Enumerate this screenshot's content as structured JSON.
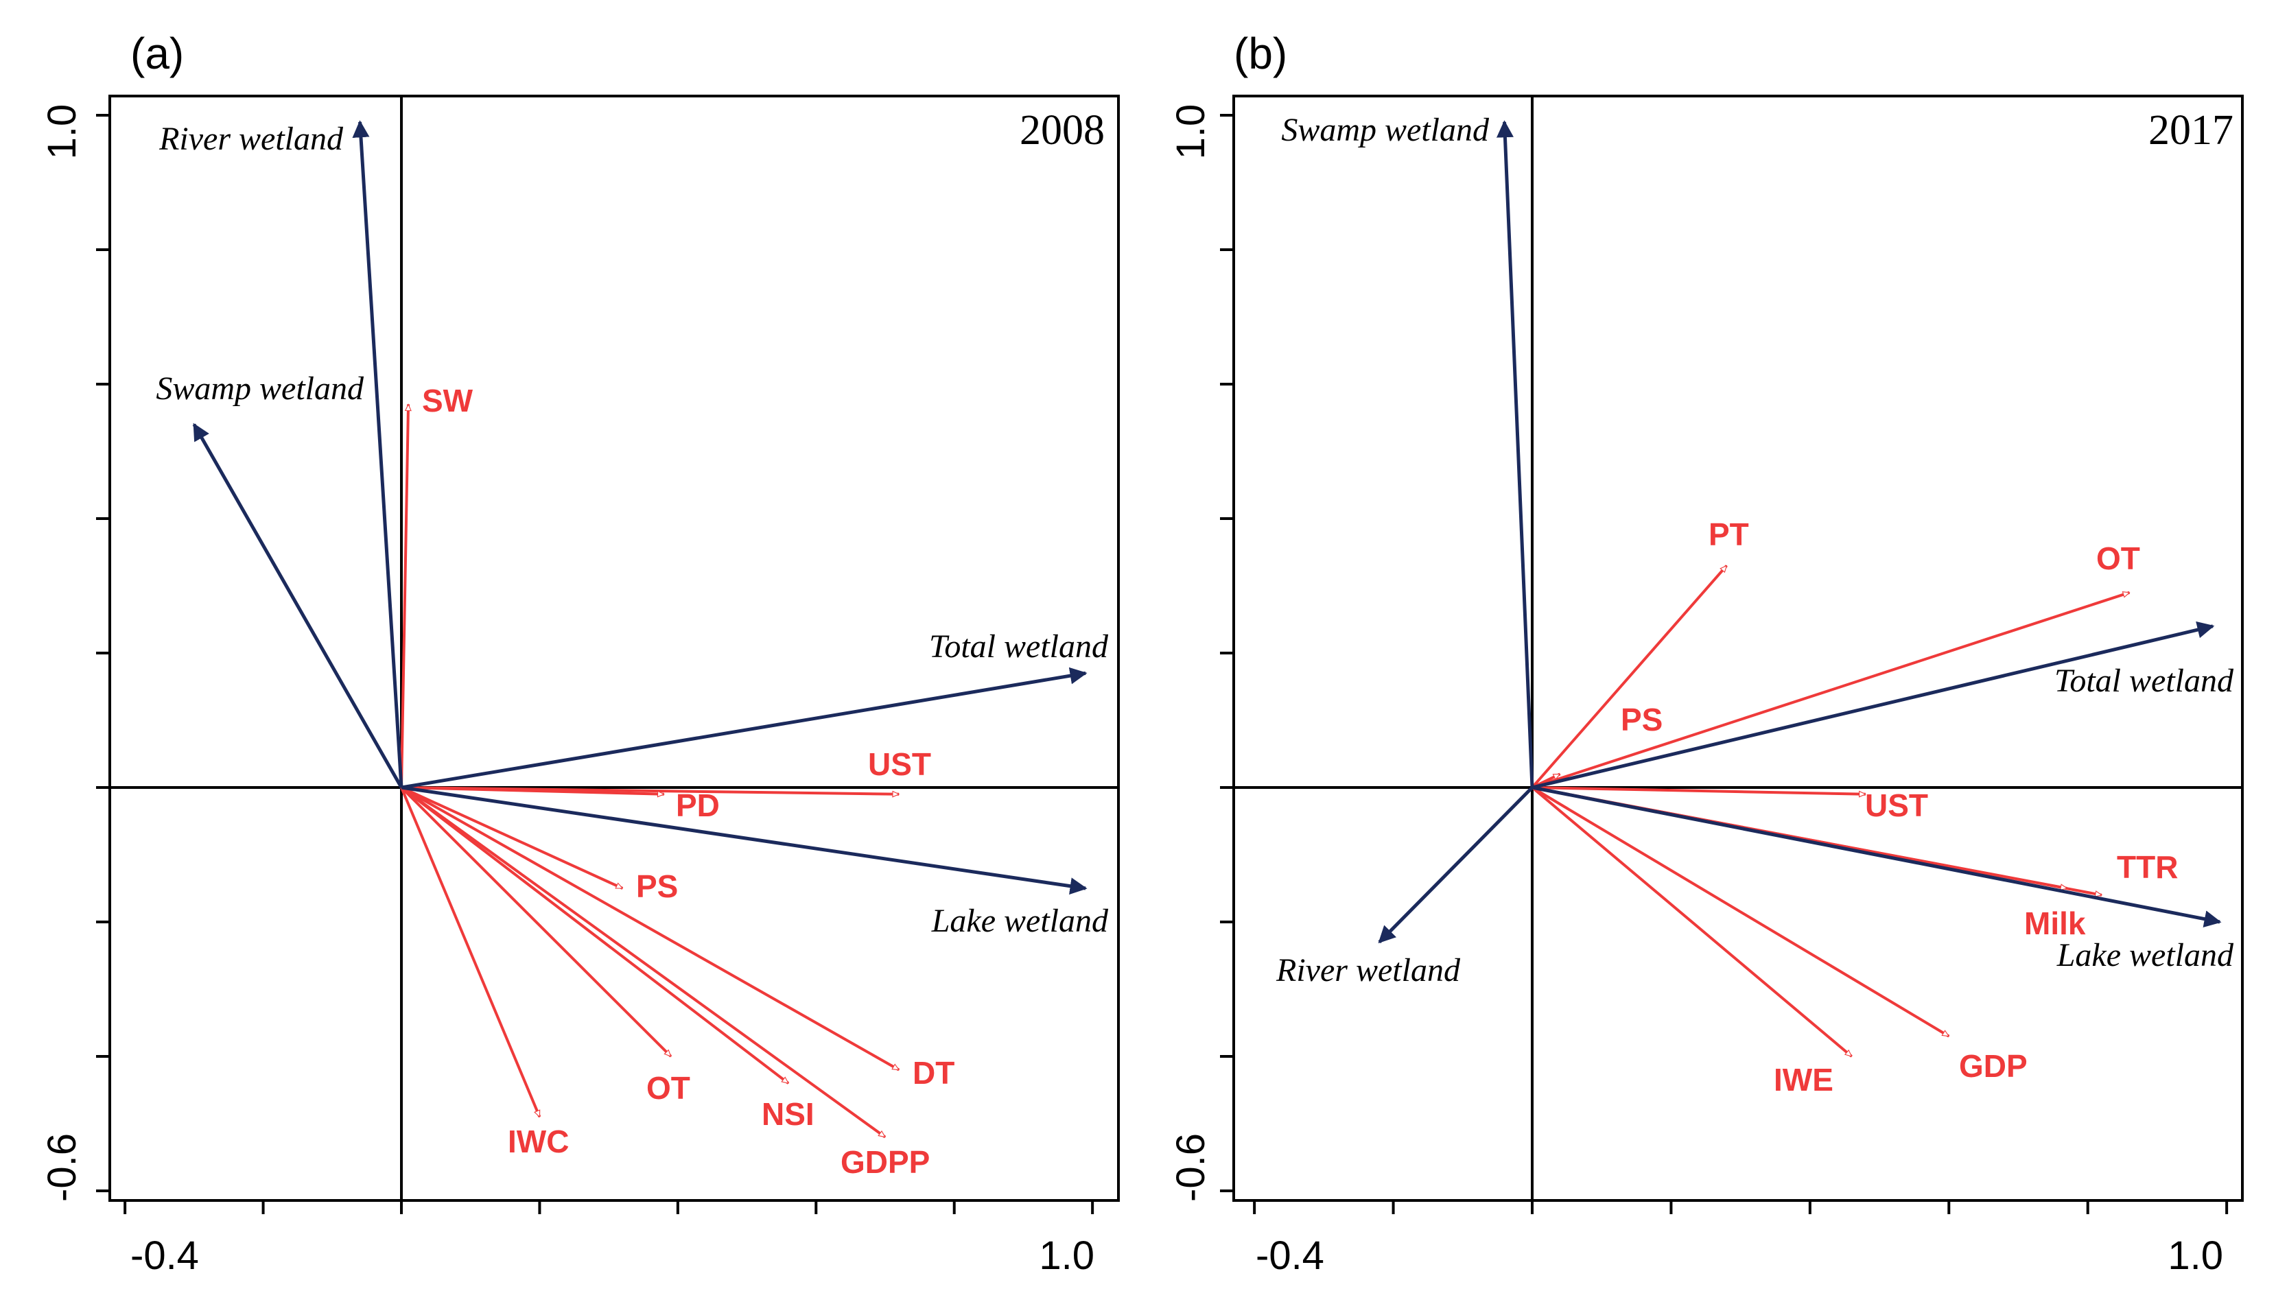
{
  "colors": {
    "response": "#1b2a5c",
    "explanatory": "#ef3a3a",
    "frame": "#000000"
  },
  "chart_data": [
    {
      "type": "biplot",
      "panel": "(a)",
      "year": "2008",
      "xlim": [
        -0.4,
        1.0
      ],
      "ylim": [
        -0.6,
        1.0
      ],
      "x_tick_labels": [
        "-0.4",
        "1.0"
      ],
      "y_tick_labels": [
        "-0.6",
        "1.0"
      ],
      "response_vectors": [
        {
          "name": "River wetland",
          "x": -0.06,
          "y": 0.99
        },
        {
          "name": "Swamp wetland",
          "x": -0.3,
          "y": 0.54
        },
        {
          "name": "Total wetland",
          "x": 0.99,
          "y": 0.17
        },
        {
          "name": "Lake wetland",
          "x": 0.99,
          "y": -0.15
        }
      ],
      "explanatory_vectors": [
        {
          "name": "SW",
          "x": 0.01,
          "y": 0.57
        },
        {
          "name": "UST",
          "x": 0.72,
          "y": -0.01
        },
        {
          "name": "PD",
          "x": 0.38,
          "y": -0.01
        },
        {
          "name": "PS",
          "x": 0.32,
          "y": -0.15
        },
        {
          "name": "DT",
          "x": 0.72,
          "y": -0.42
        },
        {
          "name": "GDPP",
          "x": 0.7,
          "y": -0.52
        },
        {
          "name": "NSI",
          "x": 0.56,
          "y": -0.44
        },
        {
          "name": "OT",
          "x": 0.39,
          "y": -0.4
        },
        {
          "name": "IWC",
          "x": 0.2,
          "y": -0.49
        }
      ]
    },
    {
      "type": "biplot",
      "panel": "(b)",
      "year": "2017",
      "xlim": [
        -0.4,
        1.0
      ],
      "ylim": [
        -0.6,
        1.0
      ],
      "x_tick_labels": [
        "-0.4",
        "1.0"
      ],
      "y_tick_labels": [
        "-0.6",
        "1.0"
      ],
      "response_vectors": [
        {
          "name": "Swamp wetland",
          "x": -0.04,
          "y": 0.99
        },
        {
          "name": "Total wetland",
          "x": 0.98,
          "y": 0.24
        },
        {
          "name": "Lake wetland",
          "x": 0.99,
          "y": -0.2
        },
        {
          "name": "River wetland",
          "x": -0.22,
          "y": -0.23
        }
      ],
      "explanatory_vectors": [
        {
          "name": "PT",
          "x": 0.28,
          "y": 0.33
        },
        {
          "name": "OT",
          "x": 0.86,
          "y": 0.29
        },
        {
          "name": "PS",
          "x": 0.04,
          "y": 0.02
        },
        {
          "name": "UST",
          "x": 0.48,
          "y": -0.01
        },
        {
          "name": "TTR",
          "x": 0.82,
          "y": -0.16
        },
        {
          "name": "Milk",
          "x": 0.77,
          "y": -0.15
        },
        {
          "name": "GDP",
          "x": 0.6,
          "y": -0.37
        },
        {
          "name": "IWE",
          "x": 0.46,
          "y": -0.4
        }
      ]
    }
  ]
}
